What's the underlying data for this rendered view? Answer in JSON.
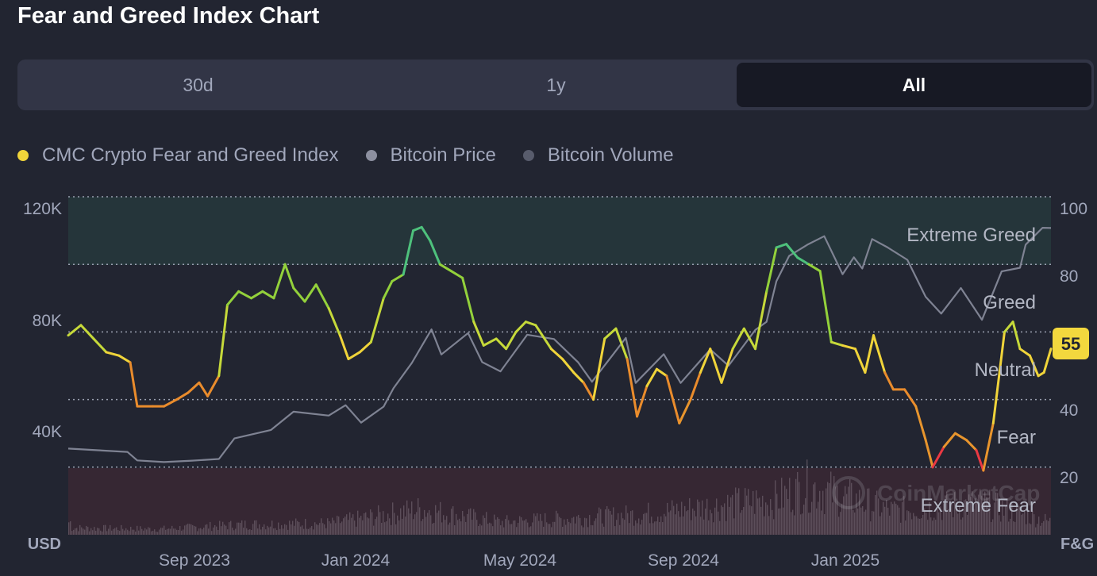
{
  "title": "Fear and Greed Index Chart",
  "tabs": [
    {
      "label": "30d",
      "active": false
    },
    {
      "label": "1y",
      "active": false
    },
    {
      "label": "All",
      "active": true
    }
  ],
  "legend": [
    {
      "label": "CMC Crypto Fear and Greed Index",
      "color": "#f0d43a"
    },
    {
      "label": "Bitcoin Price",
      "color": "#8d90a0"
    },
    {
      "label": "Bitcoin Volume",
      "color": "#585c6c"
    }
  ],
  "watermark": "CoinMarketCap",
  "chart_data": {
    "type": "line",
    "left_axis": {
      "unit_label": "USD",
      "ticks": [
        "120K",
        "80K",
        "40K"
      ],
      "tick_values": [
        120000,
        80000,
        40000
      ],
      "range": [
        0,
        120000
      ]
    },
    "right_axis": {
      "unit_label": "F&G",
      "ticks": [
        "100",
        "80",
        "60",
        "40",
        "20"
      ],
      "tick_values": [
        100,
        80,
        60,
        40,
        20
      ],
      "range": [
        0,
        100
      ]
    },
    "x_ticks": [
      "Sep 2023",
      "Jan 2024",
      "May 2024",
      "Sep 2024",
      "Jan 2025"
    ],
    "x_range": [
      "2023-06-29",
      "2025-05-27"
    ],
    "x_tick_dates": [
      "2023-09-01",
      "2024-01-01",
      "2024-05-01",
      "2024-09-01",
      "2025-01-01"
    ],
    "zones": [
      {
        "label": "Extreme Greed",
        "from": 80,
        "to": 100,
        "color": "#3fa37f"
      },
      {
        "label": "Greed",
        "from": 60,
        "to": 80
      },
      {
        "label": "Neutral",
        "from": 40,
        "to": 60
      },
      {
        "label": "Fear",
        "from": 20,
        "to": 40
      },
      {
        "label": "Extreme Fear",
        "from": 0,
        "to": 20,
        "color": "#ea3943"
      }
    ],
    "current_value": "55",
    "series": [
      {
        "name": "CMC Crypto Fear and Greed Index",
        "axis": "right",
        "points": [
          [
            "2023-06-29",
            59
          ],
          [
            "2023-07-08",
            62
          ],
          [
            "2023-07-17",
            58
          ],
          [
            "2023-07-26",
            54
          ],
          [
            "2023-08-04",
            53
          ],
          [
            "2023-08-12",
            51
          ],
          [
            "2023-08-17",
            38
          ],
          [
            "2023-08-28",
            38
          ],
          [
            "2023-09-05",
            38
          ],
          [
            "2023-09-14",
            40
          ],
          [
            "2023-09-22",
            42
          ],
          [
            "2023-09-30",
            45
          ],
          [
            "2023-10-06",
            41
          ],
          [
            "2023-10-14",
            47
          ],
          [
            "2023-10-20",
            68
          ],
          [
            "2023-10-28",
            72
          ],
          [
            "2023-11-06",
            70
          ],
          [
            "2023-11-14",
            72
          ],
          [
            "2023-11-22",
            70
          ],
          [
            "2023-11-30",
            80
          ],
          [
            "2023-12-06",
            73
          ],
          [
            "2023-12-14",
            69
          ],
          [
            "2023-12-22",
            74
          ],
          [
            "2023-12-31",
            67
          ],
          [
            "2024-01-08",
            59
          ],
          [
            "2024-01-14",
            52
          ],
          [
            "2024-01-22",
            54
          ],
          [
            "2024-01-30",
            57
          ],
          [
            "2024-02-08",
            70
          ],
          [
            "2024-02-14",
            75
          ],
          [
            "2024-02-22",
            77
          ],
          [
            "2024-02-29",
            90
          ],
          [
            "2024-03-06",
            91
          ],
          [
            "2024-03-12",
            87
          ],
          [
            "2024-03-19",
            80
          ],
          [
            "2024-03-27",
            78
          ],
          [
            "2024-04-04",
            76
          ],
          [
            "2024-04-12",
            63
          ],
          [
            "2024-04-19",
            56
          ],
          [
            "2024-04-28",
            58
          ],
          [
            "2024-05-05",
            55
          ],
          [
            "2024-05-12",
            60
          ],
          [
            "2024-05-19",
            63
          ],
          [
            "2024-05-26",
            62
          ],
          [
            "2024-06-06",
            55
          ],
          [
            "2024-06-14",
            52
          ],
          [
            "2024-06-22",
            48
          ],
          [
            "2024-06-29",
            45
          ],
          [
            "2024-07-06",
            40
          ],
          [
            "2024-07-14",
            58
          ],
          [
            "2024-07-22",
            61
          ],
          [
            "2024-07-30",
            52
          ],
          [
            "2024-08-06",
            35
          ],
          [
            "2024-08-13",
            44
          ],
          [
            "2024-08-20",
            49
          ],
          [
            "2024-08-27",
            47
          ],
          [
            "2024-09-05",
            33
          ],
          [
            "2024-09-13",
            40
          ],
          [
            "2024-09-20",
            48
          ],
          [
            "2024-09-27",
            55
          ],
          [
            "2024-10-05",
            45
          ],
          [
            "2024-10-13",
            55
          ],
          [
            "2024-10-21",
            61
          ],
          [
            "2024-10-29",
            55
          ],
          [
            "2024-11-06",
            72
          ],
          [
            "2024-11-13",
            85
          ],
          [
            "2024-11-20",
            86
          ],
          [
            "2024-11-28",
            82
          ],
          [
            "2024-12-06",
            80
          ],
          [
            "2024-12-14",
            78
          ],
          [
            "2024-12-22",
            57
          ],
          [
            "2024-12-30",
            56
          ],
          [
            "2025-01-08",
            55
          ],
          [
            "2025-01-15",
            48
          ],
          [
            "2025-01-21",
            59
          ],
          [
            "2025-01-29",
            48
          ],
          [
            "2025-02-04",
            43
          ],
          [
            "2025-02-12",
            43
          ],
          [
            "2025-02-20",
            38
          ],
          [
            "2025-02-27",
            28
          ],
          [
            "2025-03-04",
            20
          ],
          [
            "2025-03-12",
            26
          ],
          [
            "2025-03-20",
            30
          ],
          [
            "2025-03-28",
            28
          ],
          [
            "2025-04-04",
            25
          ],
          [
            "2025-04-09",
            19
          ],
          [
            "2025-04-16",
            33
          ],
          [
            "2025-04-24",
            60
          ],
          [
            "2025-04-30",
            63
          ],
          [
            "2025-05-05",
            55
          ],
          [
            "2025-05-12",
            53
          ],
          [
            "2025-05-18",
            47
          ],
          [
            "2025-05-22",
            48
          ],
          [
            "2025-05-27",
            55
          ]
        ]
      },
      {
        "name": "Bitcoin Price",
        "axis": "left",
        "points": [
          [
            "2023-06-29",
            30600
          ],
          [
            "2023-07-20",
            30000
          ],
          [
            "2023-08-10",
            29400
          ],
          [
            "2023-08-17",
            26400
          ],
          [
            "2023-09-05",
            25800
          ],
          [
            "2023-09-25",
            26300
          ],
          [
            "2023-10-14",
            26900
          ],
          [
            "2023-10-25",
            34200
          ],
          [
            "2023-11-20",
            37200
          ],
          [
            "2023-12-06",
            43700
          ],
          [
            "2023-12-31",
            42300
          ],
          [
            "2024-01-12",
            46000
          ],
          [
            "2024-01-23",
            39800
          ],
          [
            "2024-02-08",
            45500
          ],
          [
            "2024-02-15",
            52000
          ],
          [
            "2024-02-28",
            61000
          ],
          [
            "2024-03-13",
            72900
          ],
          [
            "2024-03-20",
            64000
          ],
          [
            "2024-04-08",
            71600
          ],
          [
            "2024-04-18",
            61300
          ],
          [
            "2024-05-01",
            58000
          ],
          [
            "2024-05-20",
            71000
          ],
          [
            "2024-06-08",
            69500
          ],
          [
            "2024-06-25",
            61300
          ],
          [
            "2024-07-05",
            54300
          ],
          [
            "2024-07-29",
            69900
          ],
          [
            "2024-08-05",
            53900
          ],
          [
            "2024-08-25",
            64100
          ],
          [
            "2024-09-06",
            53900
          ],
          [
            "2024-09-27",
            65800
          ],
          [
            "2024-10-10",
            60000
          ],
          [
            "2024-10-29",
            72700
          ],
          [
            "2024-11-06",
            75600
          ],
          [
            "2024-11-13",
            90000
          ],
          [
            "2024-11-22",
            99000
          ],
          [
            "2024-12-05",
            103000
          ],
          [
            "2024-12-17",
            106000
          ],
          [
            "2024-12-30",
            92500
          ],
          [
            "2025-01-07",
            98500
          ],
          [
            "2025-01-13",
            94500
          ],
          [
            "2025-01-20",
            105000
          ],
          [
            "2025-01-31",
            102000
          ],
          [
            "2025-02-14",
            97600
          ],
          [
            "2025-02-27",
            84500
          ],
          [
            "2025-03-10",
            78500
          ],
          [
            "2025-03-24",
            87600
          ],
          [
            "2025-04-08",
            76300
          ],
          [
            "2025-04-22",
            93500
          ],
          [
            "2025-05-05",
            94800
          ],
          [
            "2025-05-09",
            103000
          ],
          [
            "2025-05-21",
            109000
          ],
          [
            "2025-05-27",
            108900
          ]
        ]
      },
      {
        "name": "Bitcoin Volume",
        "axis": "left",
        "note_relative": true,
        "points": [
          [
            "2023-07-01",
            0.12
          ],
          [
            "2023-09-01",
            0.1
          ],
          [
            "2023-11-01",
            0.18
          ],
          [
            "2024-01-01",
            0.2
          ],
          [
            "2024-03-05",
            0.45
          ],
          [
            "2024-05-01",
            0.22
          ],
          [
            "2024-08-05",
            0.35
          ],
          [
            "2024-11-12",
            0.62
          ],
          [
            "2024-12-05",
            0.85
          ],
          [
            "2025-02-03",
            0.42
          ],
          [
            "2025-04-07",
            0.55
          ],
          [
            "2025-05-27",
            0.22
          ]
        ]
      }
    ]
  }
}
